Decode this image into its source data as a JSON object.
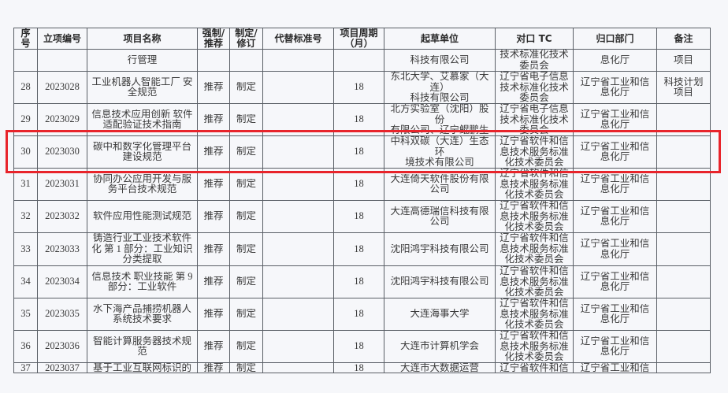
{
  "headers": [
    "序\n号",
    "立项编号",
    "项目名称",
    "强制/\n推荐",
    "制定/\n修订",
    "代替标准号",
    "项目周期\n（月）",
    "起草单位",
    "对口 TC",
    "归口部门",
    "备注"
  ],
  "rows": [
    [
      "",
      "",
      "行管理",
      "",
      "",
      "",
      "",
      "科技有限公司",
      "技术标准化技术\n委员会",
      "息化厅",
      "项目"
    ],
    [
      "28",
      "2023028",
      "工业机器人智能工厂  安\n全规范",
      "推荐",
      "制定",
      "",
      "18",
      "东北大学、艾慕家（大连）\n科技有限公司",
      "辽宁省电子信息\n技术标准化技术\n委员会",
      "辽宁省工业和信\n息化厅",
      "科技计划\n项目"
    ],
    [
      "29",
      "2023029",
      "信息技术应用创新  软件\n适配验证技术指南",
      "推荐",
      "制定",
      "",
      "18",
      "北方实验室（沈阳）股份\n有限公司、辽宁鲲鹏生态\n创新中心有限公司",
      "辽宁省电子信息\n技术标准化技术\n委员会",
      "辽宁省工业和信\n息化厅",
      ""
    ],
    [
      "30",
      "2023030",
      "碳中和数字化管理平台\n建设规范",
      "推荐",
      "制定",
      "",
      "18",
      "中科双碳（大连）生态环\n境技术有限公司",
      "辽宁省软件和信\n息技术服务标准\n化技术委员会",
      "辽宁省工业和信\n息化厅",
      ""
    ],
    [
      "31",
      "2023031",
      "协同办公应用开发与服\n务平台技术规范",
      "推荐",
      "制定",
      "",
      "18",
      "大连倚天软件股份有限\n公司",
      "辽宁省软件和信\n息技术服务标准\n化技术委员会",
      "辽宁省工业和信\n息化厅",
      ""
    ],
    [
      "32",
      "2023032",
      "软件应用性能测试规范",
      "推荐",
      "制定",
      "",
      "18",
      "大连高德瑞信科技有限\n公司",
      "辽宁省软件和信\n息技术服务标准\n化技术委员会",
      "辽宁省工业和信\n息化厅",
      ""
    ],
    [
      "33",
      "2023033",
      "铸造行业工业技术软件\n化  第 1 部分：工业知识\n分类提取",
      "推荐",
      "制定",
      "",
      "18",
      "沈阳鸿宇科技有限公司",
      "辽宁省软件和信\n息技术服务标准\n化技术委员会",
      "辽宁省工业和信\n息化厅",
      ""
    ],
    [
      "34",
      "2023034",
      "信息技术  职业技能  第 9\n部分：工业软件",
      "推荐",
      "制定",
      "",
      "18",
      "沈阳鸿宇科技有限公司",
      "辽宁省软件和信\n息技术服务标准\n化技术委员会",
      "辽宁省工业和信\n息化厅",
      ""
    ],
    [
      "35",
      "2023035",
      "水下海产品捕捞机器人\n系统技术要求",
      "推荐",
      "制定",
      "",
      "18",
      "大连海事大学",
      "辽宁省软件和信\n息技术服务标准\n化技术委员会",
      "辽宁省工业和信\n息化厅",
      ""
    ],
    [
      "36",
      "2023036",
      "智能计算服务器技术规范",
      "推荐",
      "制定",
      "",
      "18",
      "大连市计算机学会",
      "辽宁省软件和信\n息技术服务标准\n化技术委员会",
      "辽宁省工业和信\n息化厅",
      ""
    ],
    [
      "37",
      "2023037",
      "基于工业互联网标识的",
      "推荐",
      "制定",
      "",
      "18",
      "大连市大数据运营",
      "辽宁省软件和信",
      "辽宁省工业和信",
      ""
    ]
  ],
  "highlight_color": "#e8242b",
  "highlighted_row": "30"
}
